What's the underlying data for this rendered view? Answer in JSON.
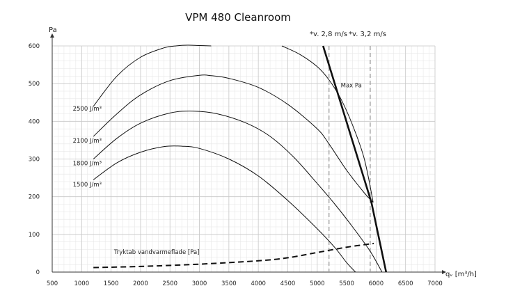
{
  "chart_data": {
    "type": "line",
    "title": "VPM 480 Cleanroom",
    "ylabel": "Pa",
    "xlabel": "qᵥ [m³/h]",
    "xlim": [
      500,
      7000
    ],
    "ylim": [
      0,
      600
    ],
    "x_ticks": [
      "500",
      "1000",
      "1500",
      "2000",
      "2500",
      "3000",
      "3500",
      "4000",
      "4500",
      "5000",
      "5500",
      "6000",
      "6500",
      "7000"
    ],
    "y_ticks": [
      "0",
      "100",
      "200",
      "300",
      "400",
      "500",
      "600"
    ],
    "grid": true,
    "series": [
      {
        "name": "2500 J/m³",
        "style": "thin",
        "x": [
          1200,
          1600,
          2000,
          2400,
          2600,
          2800,
          3000,
          3200
        ],
        "y": [
          440,
          520,
          570,
          595,
          600,
          602,
          601,
          600
        ]
      },
      {
        "name": "",
        "style": "thin",
        "x": [
          4400,
          4700,
          5000,
          5200,
          5400,
          5600,
          5800,
          5950
        ],
        "y": [
          600,
          578,
          545,
          510,
          460,
          390,
          300,
          185
        ]
      },
      {
        "name": "2100 J/m³",
        "style": "thin",
        "x": [
          1200,
          1600,
          2000,
          2500,
          3000,
          3200,
          3500,
          4000,
          4500,
          5000,
          5200,
          5500,
          5800,
          5950
        ],
        "y": [
          360,
          420,
          470,
          508,
          522,
          521,
          514,
          490,
          445,
          380,
          340,
          270,
          210,
          185
        ]
      },
      {
        "name": "1800 J/m³",
        "style": "thin",
        "x": [
          1200,
          1600,
          2000,
          2500,
          2900,
          3300,
          3800,
          4200,
          4600,
          5000,
          5300,
          5600,
          5900,
          6100
        ],
        "y": [
          300,
          355,
          395,
          422,
          427,
          420,
          395,
          360,
          305,
          235,
          180,
          120,
          55,
          0
        ]
      },
      {
        "name": "1500 J/m³",
        "style": "thin",
        "x": [
          1200,
          1600,
          2000,
          2400,
          2700,
          3000,
          3500,
          4000,
          4500,
          5000,
          5300,
          5500,
          5650
        ],
        "y": [
          245,
          290,
          318,
          333,
          334,
          328,
          300,
          255,
          190,
          115,
          65,
          25,
          0
        ]
      },
      {
        "name": "Max Pa",
        "style": "bold",
        "x": [
          5100,
          5920,
          6170
        ],
        "y": [
          600,
          185,
          0
        ]
      },
      {
        "name": "Tryktab vandvarmeflade [Pa]",
        "style": "dashed",
        "x": [
          1200,
          2000,
          3000,
          4000,
          4500,
          5000,
          5500,
          5960
        ],
        "y": [
          12,
          15,
          21,
          30,
          38,
          52,
          66,
          76
        ]
      }
    ],
    "velocity_lines": [
      {
        "label": "*v. 2,8 m/s",
        "x": 5200
      },
      {
        "label": "*v. 3,2 m/s",
        "x": 5900
      }
    ],
    "curve_labels": [
      {
        "text": "2500 J/m³",
        "x": 850,
        "y": 428
      },
      {
        "text": "2100 J/m³",
        "x": 850,
        "y": 343
      },
      {
        "text": "1800 J/m³",
        "x": 850,
        "y": 283
      },
      {
        "text": "1500 J/m³",
        "x": 850,
        "y": 227
      },
      {
        "text": "Max Pa",
        "x": 5400,
        "y": 490
      },
      {
        "text": "Tryktab vandvarmeflade [Pa]",
        "x": 1550,
        "y": 48
      }
    ]
  }
}
